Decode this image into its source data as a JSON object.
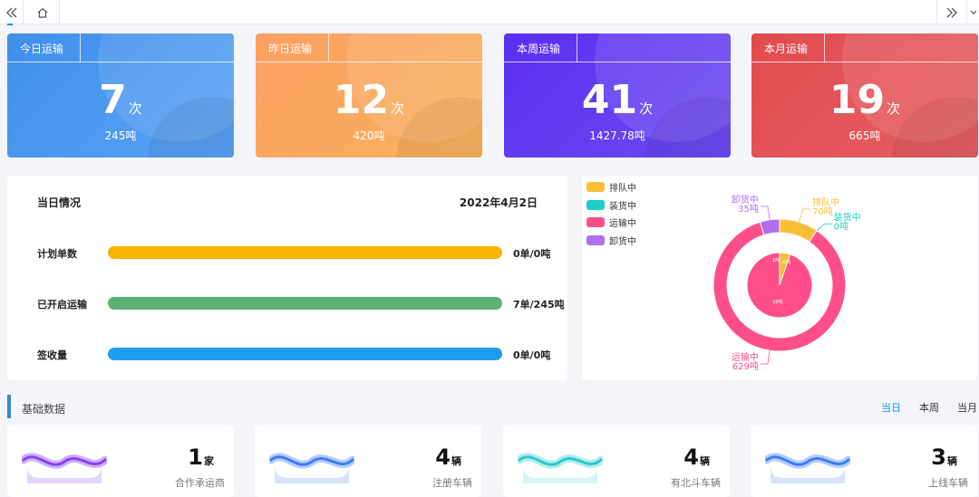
{
  "tabs": {
    "home_icon": "home-icon",
    "scroll_left_icon": "double-chevron-left-icon",
    "scroll_right_icon": "double-chevron-right-icon",
    "more_icon": "chevron-down-icon"
  },
  "stats": [
    {
      "title": "今日运输",
      "count": "7",
      "unit": "次",
      "weight": "245吨",
      "color_from": "#3f8fea",
      "color_to": "#5aa2f6"
    },
    {
      "title": "昨日运输",
      "count": "12",
      "unit": "次",
      "weight": "420吨",
      "color_from": "#fca062",
      "color_to": "#f9b25d"
    },
    {
      "title": "本周运输",
      "count": "41",
      "unit": "次",
      "weight": "1427.78吨",
      "color_from": "#5b2ff0",
      "color_to": "#6d4cf2"
    },
    {
      "title": "本月运输",
      "count": "19",
      "unit": "次",
      "weight": "665吨",
      "color_from": "#e14b4f",
      "color_to": "#e65f62"
    }
  ],
  "daily": {
    "title": "当日情况",
    "date": "2022年4月2日",
    "rows": [
      {
        "label": "计划单数",
        "value": "0单/0吨",
        "color": "#f8b400"
      },
      {
        "label": "已开启运输",
        "value": "7单/245吨",
        "color": "#5db174"
      },
      {
        "label": "签收量",
        "value": "0单/0吨",
        "color": "#1e9cf0"
      }
    ]
  },
  "chart_data": {
    "type": "pie",
    "variant": "nested-donut",
    "legend": [
      {
        "name": "排队中",
        "color": "#f9be35"
      },
      {
        "name": "装货中",
        "color": "#1ccfc9"
      },
      {
        "name": "运输中",
        "color": "#ff4f8b"
      },
      {
        "name": "卸货中",
        "color": "#b16ef0"
      }
    ],
    "outer": [
      {
        "name": "排队中",
        "value": 70,
        "label": "排队中\n70吨"
      },
      {
        "name": "装货中",
        "value": 0,
        "label": "装货中\n0吨"
      },
      {
        "name": "运输中",
        "value": 629,
        "label": "运输中\n629吨"
      },
      {
        "name": "卸货中",
        "value": 35,
        "label": "卸货中\n35吨"
      }
    ],
    "inner": [
      {
        "name": "排队中",
        "value": 1,
        "label": "1吨"
      },
      {
        "name": "装货中",
        "value": 0,
        "label": "0吨"
      },
      {
        "name": "运输中",
        "value": 18,
        "label": "18吨"
      },
      {
        "name": "卸货中",
        "value": 0,
        "label": ""
      }
    ]
  },
  "basic": {
    "title": "基础数据",
    "periods": [
      "当日",
      "本周",
      "当月"
    ],
    "active_period": "当日",
    "items": [
      {
        "count": "1",
        "unit": "家",
        "label": "合作承运商",
        "wave_color": "#8a3ff0",
        "wave_light": "#c9b2fb"
      },
      {
        "count": "4",
        "unit": "辆",
        "label": "注册车辆",
        "wave_color": "#3c7df0",
        "wave_light": "#b4ccfb"
      },
      {
        "count": "4",
        "unit": "辆",
        "label": "有北斗车辆",
        "wave_color": "#2ec8c9",
        "wave_light": "#b1ecee"
      },
      {
        "count": "3",
        "unit": "辆",
        "label": "上线车辆",
        "wave_color": "#3c7df0",
        "wave_light": "#b4ccfb"
      }
    ]
  }
}
